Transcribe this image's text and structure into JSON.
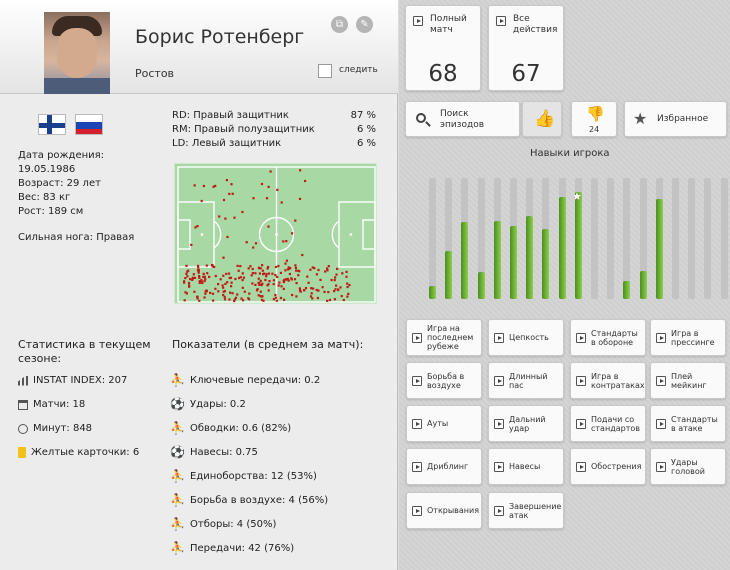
{
  "player": {
    "name": "Борис Ротенберг",
    "club": "Ростов",
    "follow_label": "следить",
    "birth_label": "Дата рождения:",
    "birth_date": "19.05.1986",
    "age": "Возраст: 29 лет",
    "weight": "Вес: 83 кг",
    "height": "Рост: 189 см",
    "foot": "Сильная нога: Правая"
  },
  "positions": [
    {
      "label": "RD: Правый защитник",
      "value": "87 %"
    },
    {
      "label": "RM: Правый полузащитник",
      "value": "6 %"
    },
    {
      "label": "LD: Левый защитник",
      "value": "6 %"
    }
  ],
  "season": {
    "title_line1": "Статистика в текущем",
    "title_line2": "сезоне:",
    "items": [
      {
        "icon": "bar-chart-icon",
        "text": "INSTAT INDEX: 207"
      },
      {
        "icon": "matches-icon",
        "text": "Матчи: 18"
      },
      {
        "icon": "clock-icon",
        "text": "Минут: 848"
      },
      {
        "icon": "yellow-card-icon",
        "text": "Желтые карточки: 6"
      }
    ]
  },
  "metrics": {
    "title": "Показатели (в среднем за матч):",
    "items": [
      {
        "icon": "key-pass-icon",
        "text": "Ключевые передачи: 0.2"
      },
      {
        "icon": "shot-icon",
        "text": "Удары: 0.2"
      },
      {
        "icon": "dribble-icon",
        "text": "Обводки: 0.6 (82%)"
      },
      {
        "icon": "cross-icon",
        "text": "Навесы: 0.75"
      },
      {
        "icon": "duel-icon",
        "text": "Единоборства: 12 (53%)"
      },
      {
        "icon": "aerial-duel-icon",
        "text": "Борьба в воздухе: 4 (56%)"
      },
      {
        "icon": "tackle-icon",
        "text": "Отборы: 4 (50%)"
      },
      {
        "icon": "pass-icon",
        "text": "Передачи: 42 (76%)"
      }
    ]
  },
  "top_cards": [
    {
      "label_line1": "Полный",
      "label_line2": "матч",
      "value": "68"
    },
    {
      "label_line1": "Все",
      "label_line2": "действия",
      "value": "67"
    }
  ],
  "toolbar": {
    "search_line1": "Поиск",
    "search_line2": "эпизодов",
    "dislike_count": "24",
    "favorites": "Избранное"
  },
  "skills": {
    "title": "Навыки игрока",
    "levels": [
      0.12,
      0.45,
      0.72,
      0.25,
      0.73,
      0.68,
      0.78,
      0.65,
      0.95,
      1.0,
      0,
      0,
      0.17,
      0.26,
      0.93,
      0,
      0,
      0,
      0,
      0
    ],
    "starred_index": 9,
    "accent": "#6ab535"
  },
  "skill_buttons": [
    "Игра на последнем рубеже",
    "Цепкость",
    "Стандарты в обороне",
    "Игра в прессинге",
    "Борьба в воздухе",
    "Длинный пас",
    "Игра в контратаках",
    "Плей мейкинг",
    "Ауты",
    "Дальний удар",
    "Подачи со стандартов",
    "Стандарты в атаке",
    "Дриблинг",
    "Навесы",
    "Обострения",
    "Удары головой",
    "Открывания",
    "Завершение атак"
  ]
}
